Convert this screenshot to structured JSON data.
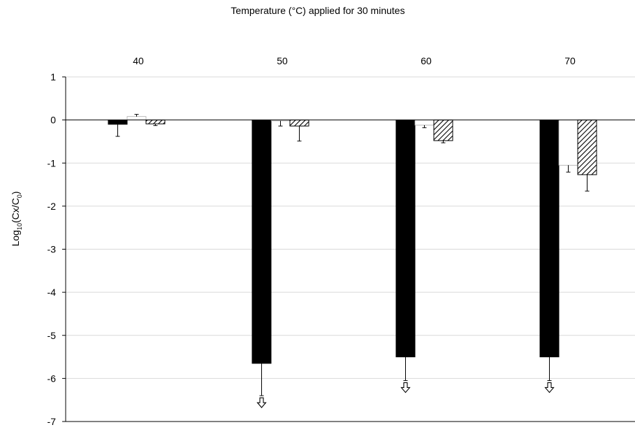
{
  "chart_data": {
    "type": "bar",
    "title": "Temperature (°C) applied for 30 minutes",
    "xlabel": "",
    "ylabel_main": "Log",
    "ylabel_sub10": "10",
    "ylabel_mid": "(Cx/C",
    "ylabel_sub0": "0",
    "ylabel_end": ")",
    "categories": [
      "40",
      "50",
      "60",
      "70"
    ],
    "y_ticks": [
      "1",
      "0",
      "-1",
      "-2",
      "-3",
      "-4",
      "-5",
      "-6",
      "-7"
    ],
    "ylim": [
      -7,
      1
    ],
    "grid": true,
    "series": [
      {
        "values": [
          -0.1,
          -5.65,
          -5.5,
          -5.5
        ],
        "errors": [
          0.28,
          0.75,
          0.55,
          0.55
        ],
        "fill": "#000000",
        "style": "solid",
        "below_detection": [
          false,
          true,
          true,
          true
        ]
      },
      {
        "values": [
          0.08,
          -0.02,
          -0.12,
          -1.05
        ],
        "errors": [
          0.05,
          0.12,
          0.06,
          0.16
        ],
        "fill": "#ffffff",
        "style": "open"
      },
      {
        "values": [
          -0.09,
          -0.14,
          -0.48,
          -1.27
        ],
        "errors": [
          0.04,
          0.35,
          0.05,
          0.38
        ],
        "fill": "#ffffff",
        "style": "hatched"
      }
    ]
  }
}
